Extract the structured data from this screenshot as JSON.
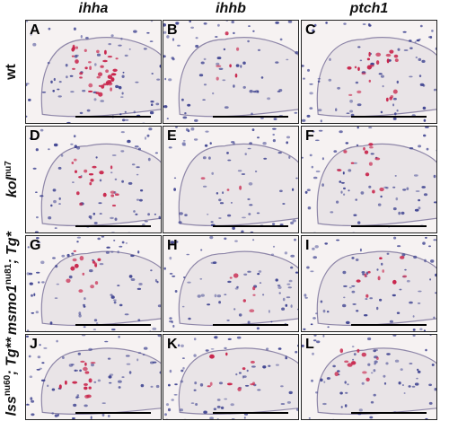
{
  "columns": [
    {
      "label": "ihha"
    },
    {
      "label": "ihhb"
    },
    {
      "label": "ptch1"
    }
  ],
  "rows": [
    {
      "base": "wt",
      "sup": "",
      "tail": ""
    },
    {
      "base": "kol",
      "sup": "nu7",
      "tail": ""
    },
    {
      "base": "msmo1",
      "sup": "nu81",
      "tail": "; Tg*"
    },
    {
      "base": "lss",
      "sup": "nu60",
      "tail": "; Tg**"
    }
  ],
  "panels": [
    "A",
    "B",
    "C",
    "D",
    "E",
    "F",
    "G",
    "H",
    "I",
    "J",
    "K",
    "L"
  ],
  "colors": {
    "background": "#f6f2f2",
    "tissue": "#e9e4e7",
    "nucleus_blue": "#3a3f8e",
    "stain_red": "#c8234a",
    "scale_bar": "#000000"
  }
}
